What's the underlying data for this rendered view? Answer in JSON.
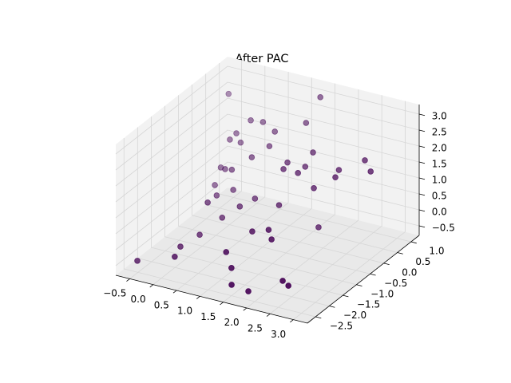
{
  "chart_data": {
    "type": "scatter3d",
    "title": "After PAC",
    "color": "#440154",
    "grid": true,
    "x": [
      -0.63,
      0.17,
      0.0,
      0.12,
      1.27,
      1.5,
      1.62,
      1.92,
      2.48,
      2.66,
      1.42,
      1.77,
      1.95,
      2.08,
      0.31,
      0.57,
      0.0,
      -0.1,
      0.72,
      1.41,
      0.08,
      -0.43,
      -0.42,
      -0.21,
      0.05,
      0.36,
      1.33,
      1.24,
      1.64,
      1.62,
      1.98,
      1.67,
      2.44,
      2.34,
      2.78,
      3.02,
      0.62,
      -0.4,
      -0.17,
      -0.32,
      -0.07,
      0.25,
      0.62,
      1.23,
      1.36,
      -0.72
    ],
    "y": [
      -2.3,
      -2.3,
      -1.8,
      -1.3,
      -2.3,
      -2.5,
      -2.7,
      -2.6,
      -2.3,
      -2.4,
      -1.6,
      -1.6,
      -1.8,
      -0.3,
      -0.8,
      -0.6,
      -0.8,
      -0.3,
      -0.3,
      -0.6,
      0.0,
      0.2,
      0.4,
      0.2,
      0.0,
      0.2,
      -0.3,
      0.0,
      -0.3,
      0.0,
      -0.3,
      0.2,
      -0.3,
      0.0,
      0.2,
      0.0,
      0.4,
      0.7,
      0.7,
      0.8,
      0.9,
      0.8,
      0.6,
      0.7,
      1.0,
      1.2
    ],
    "z": [
      -0.62,
      -0.2,
      -0.28,
      -0.2,
      0.35,
      0.07,
      -0.28,
      -0.44,
      -0.11,
      -0.13,
      0.58,
      0.76,
      0.66,
      0.08,
      0.07,
      0.38,
      0.43,
      0.28,
      0.48,
      0.73,
      0.32,
      0.15,
      0.57,
      0.73,
      0.94,
      1.31,
      1.63,
      1.6,
      1.62,
      1.61,
      1.27,
      1.94,
      1.78,
      1.77,
      2.1,
      1.97,
      1.62,
      1.25,
      1.24,
      1.41,
      1.84,
      1.97,
      1.94,
      2.37,
      3.02,
      2.23
    ],
    "xlim": [
      -0.8,
      3.3
    ],
    "ylim": [
      -2.8,
      1.3
    ],
    "zlim": [
      -0.8,
      3.3
    ],
    "xticks": [
      {
        "value": -0.5,
        "label": "−0.5"
      },
      {
        "value": 0,
        "label": "0.0"
      },
      0.5,
      {
        "value": 1,
        "label": "1.0"
      },
      1.5,
      {
        "value": 2,
        "label": "2.0"
      },
      2.5,
      {
        "value": 3,
        "label": "3.0"
      }
    ],
    "yticks": [
      {
        "value": -2.5,
        "label": "−2.5"
      },
      {
        "value": -2,
        "label": "−2.0"
      },
      {
        "value": -1.5,
        "label": "−1.5"
      },
      {
        "value": -1,
        "label": "−1.0"
      },
      {
        "value": -0.5,
        "label": "−0.5"
      },
      {
        "value": 0,
        "label": "0.0"
      },
      0.5,
      {
        "value": 1,
        "label": "1.0"
      }
    ],
    "zticks": [
      {
        "value": -0.5,
        "label": "−0.5"
      },
      {
        "value": 0,
        "label": "0.0"
      },
      0.5,
      {
        "value": 1,
        "label": "1.0"
      },
      1.5,
      {
        "value": 2,
        "label": "2.0"
      },
      2.5,
      {
        "value": 3,
        "label": "3.0"
      }
    ]
  }
}
